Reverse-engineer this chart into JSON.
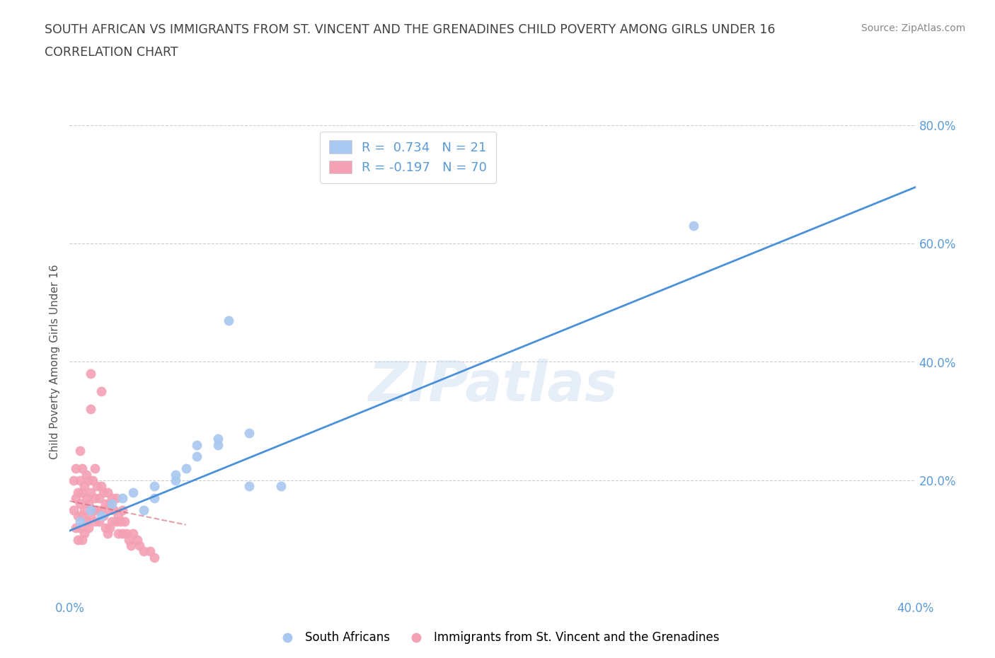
{
  "title_line1": "SOUTH AFRICAN VS IMMIGRANTS FROM ST. VINCENT AND THE GRENADINES CHILD POVERTY AMONG GIRLS UNDER 16",
  "title_line2": "CORRELATION CHART",
  "source": "Source: ZipAtlas.com",
  "ylabel": "Child Poverty Among Girls Under 16",
  "xlim": [
    0.0,
    0.4
  ],
  "ylim": [
    0.0,
    0.8
  ],
  "blue_color": "#a8c8f0",
  "pink_color": "#f4a0b5",
  "blue_line_color": "#4a90d9",
  "pink_line_color": "#d06070",
  "R_blue": 0.734,
  "N_blue": 21,
  "R_pink": -0.197,
  "N_pink": 70,
  "blue_x": [
    0.005,
    0.01,
    0.015,
    0.02,
    0.025,
    0.03,
    0.035,
    0.04,
    0.05,
    0.055,
    0.06,
    0.07,
    0.075,
    0.085,
    0.04,
    0.05,
    0.06,
    0.07,
    0.085,
    0.1,
    0.295
  ],
  "blue_y": [
    0.13,
    0.15,
    0.14,
    0.16,
    0.17,
    0.18,
    0.15,
    0.17,
    0.2,
    0.22,
    0.24,
    0.26,
    0.47,
    0.28,
    0.19,
    0.21,
    0.26,
    0.27,
    0.19,
    0.19,
    0.63
  ],
  "pink_x": [
    0.002,
    0.002,
    0.003,
    0.003,
    0.003,
    0.004,
    0.004,
    0.004,
    0.005,
    0.005,
    0.005,
    0.005,
    0.006,
    0.006,
    0.006,
    0.006,
    0.007,
    0.007,
    0.007,
    0.008,
    0.008,
    0.008,
    0.009,
    0.009,
    0.009,
    0.01,
    0.01,
    0.01,
    0.01,
    0.011,
    0.011,
    0.012,
    0.012,
    0.012,
    0.013,
    0.013,
    0.014,
    0.014,
    0.015,
    0.015,
    0.015,
    0.016,
    0.016,
    0.017,
    0.017,
    0.018,
    0.018,
    0.018,
    0.019,
    0.019,
    0.02,
    0.02,
    0.021,
    0.022,
    0.022,
    0.023,
    0.023,
    0.024,
    0.025,
    0.025,
    0.026,
    0.027,
    0.028,
    0.029,
    0.03,
    0.032,
    0.033,
    0.035,
    0.038,
    0.04
  ],
  "pink_y": [
    0.15,
    0.2,
    0.17,
    0.22,
    0.12,
    0.18,
    0.14,
    0.1,
    0.2,
    0.25,
    0.16,
    0.12,
    0.22,
    0.18,
    0.14,
    0.1,
    0.19,
    0.15,
    0.11,
    0.21,
    0.17,
    0.13,
    0.2,
    0.16,
    0.12,
    0.38,
    0.32,
    0.18,
    0.14,
    0.2,
    0.15,
    0.22,
    0.17,
    0.13,
    0.19,
    0.15,
    0.17,
    0.13,
    0.35,
    0.19,
    0.15,
    0.18,
    0.14,
    0.16,
    0.12,
    0.18,
    0.15,
    0.11,
    0.16,
    0.12,
    0.17,
    0.13,
    0.15,
    0.17,
    0.13,
    0.14,
    0.11,
    0.13,
    0.15,
    0.11,
    0.13,
    0.11,
    0.1,
    0.09,
    0.11,
    0.1,
    0.09,
    0.08,
    0.08,
    0.07
  ],
  "blue_line_x0": 0.0,
  "blue_line_y0": 0.115,
  "blue_line_x1": 0.4,
  "blue_line_y1": 0.695,
  "pink_line_x0": 0.0,
  "pink_line_y0": 0.165,
  "pink_line_x1": 0.055,
  "pink_line_y1": 0.125,
  "watermark": "ZIPatlas",
  "background_color": "#ffffff",
  "grid_color": "#cccccc",
  "axis_label_color": "#5b9bd5",
  "title_color": "#404040"
}
